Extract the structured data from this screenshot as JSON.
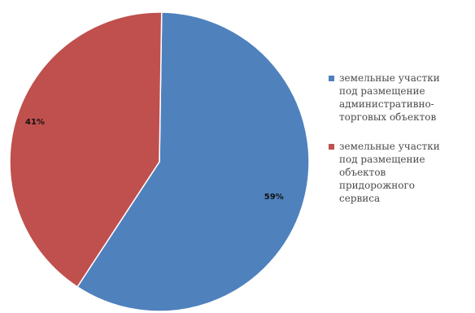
{
  "chart_data": {
    "type": "pie",
    "title": "",
    "series": [
      {
        "name": "земельные участки под размещение административно-торговых объектов",
        "value": 59,
        "label": "59%",
        "color": "#4f81bd"
      },
      {
        "name": "земельные участки под размещение объектов придорожного сервиса",
        "value": 41,
        "label": "41%",
        "color": "#c0504d"
      }
    ],
    "legend": {
      "position": "right",
      "items": [
        "земельные участки\nпод размещение\nадминистративно-\nторговых объектов",
        "земельные участки\nпод размещение\nобъектов\nпридорожного\nсервиса"
      ]
    },
    "start_angle": "top",
    "direction": "clockwise"
  }
}
